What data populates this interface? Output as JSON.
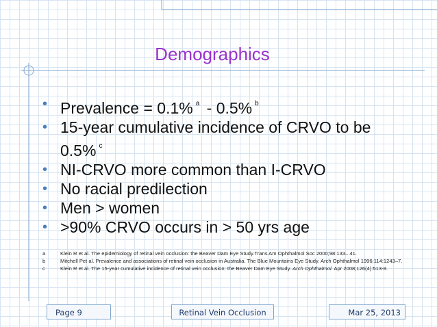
{
  "slide": {
    "title": "Demographics",
    "bullets": [
      [
        {
          "text": "Prevalence = 0.1%"
        },
        {
          "sup": "a"
        },
        {
          "text": " - 0.5%"
        },
        {
          "sup": "b"
        }
      ],
      [
        {
          "text": "15-year cumulative incidence of CRVO to be 0.5%"
        },
        {
          "sup": "c"
        }
      ],
      [
        {
          "text": "NI-CRVO more common than I-CRVO"
        }
      ],
      [
        {
          "text": "No racial predilection"
        }
      ],
      [
        {
          "text": "Men > women"
        }
      ],
      [
        {
          "text": ">90% CRVO occurs in > 50 yrs age"
        }
      ]
    ],
    "references": [
      {
        "letter": "a",
        "parts": [
          {
            "text": "Klein R et al. The epidemiology of retinal vein occlusion: the Beaver Dam Eye Study.Trans Am Ophthalmol Soc 2000;98:133– 41."
          }
        ]
      },
      {
        "letter": "b",
        "parts": [
          {
            "text": "Mitchell Pet al. Prevalence and associations of retinal vein occlusion in Australia. The Blue Mountains Eye Study. Arch Ophthalmol 1996;114:1243–7."
          }
        ]
      },
      {
        "letter": "c",
        "parts": [
          {
            "text": "Klein R et al. The 15-year cumulative incidence of retinal vein occlusion: the Beaver Dam Eye Study. "
          },
          {
            "italic": "Arch Ophthalmol."
          },
          {
            "text": " Apr 2008;126(4):513-8."
          }
        ]
      }
    ],
    "footer": {
      "page": "Page 9",
      "center": "Retinal Vein Occlusion",
      "date": "Mar 25, 2013"
    }
  }
}
